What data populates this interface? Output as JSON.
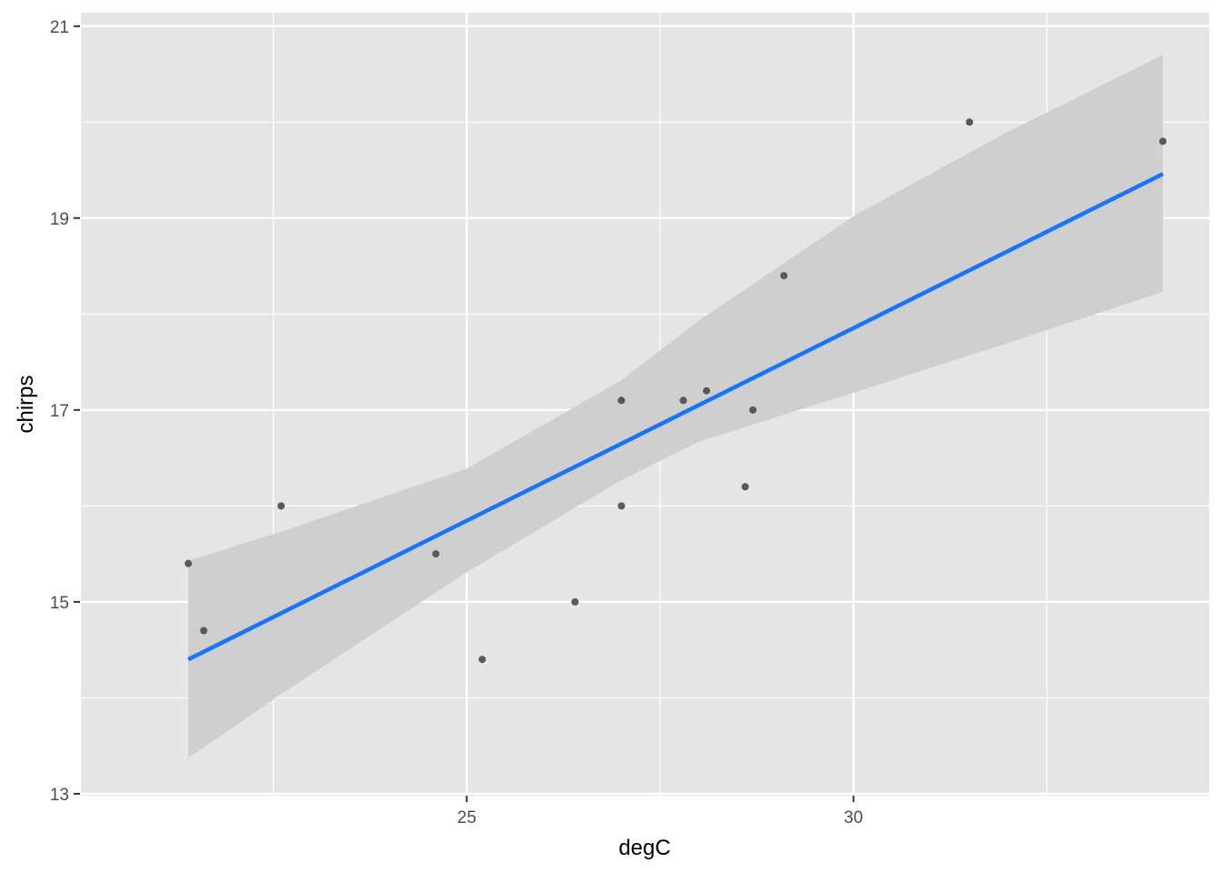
{
  "chart_data": {
    "type": "scatter",
    "title": "",
    "xlabel": "degC",
    "ylabel": "chirps",
    "xlim": [
      21.1,
      34.0
    ],
    "ylim": [
      13,
      21
    ],
    "x_ticks": [
      25,
      30
    ],
    "y_ticks": [
      13,
      15,
      17,
      19,
      21
    ],
    "grid": true,
    "legend": "none",
    "points": [
      {
        "x": 21.4,
        "y": 15.4
      },
      {
        "x": 21.6,
        "y": 14.7
      },
      {
        "x": 22.6,
        "y": 16.0
      },
      {
        "x": 24.6,
        "y": 15.5
      },
      {
        "x": 25.2,
        "y": 14.4
      },
      {
        "x": 26.4,
        "y": 15.0
      },
      {
        "x": 27.0,
        "y": 17.1
      },
      {
        "x": 27.0,
        "y": 16.0
      },
      {
        "x": 27.8,
        "y": 17.1
      },
      {
        "x": 28.1,
        "y": 17.2
      },
      {
        "x": 28.6,
        "y": 16.2
      },
      {
        "x": 28.7,
        "y": 17.0
      },
      {
        "x": 29.1,
        "y": 18.4
      },
      {
        "x": 31.5,
        "y": 20.0
      },
      {
        "x": 34.0,
        "y": 19.8
      }
    ],
    "fit": {
      "method": "linear",
      "x": [
        21.4,
        34.0
      ],
      "y": [
        14.4,
        19.46
      ]
    },
    "confidence_band": {
      "x": [
        21.4,
        22.6,
        25.0,
        27.0,
        28.0,
        30.0,
        32.0,
        34.0
      ],
      "upper": [
        15.43,
        15.73,
        16.39,
        17.31,
        17.93,
        19.02,
        19.9,
        20.7
      ],
      "lower": [
        13.37,
        14.04,
        15.31,
        16.27,
        16.67,
        17.18,
        17.7,
        18.23
      ]
    },
    "colors": {
      "panel": "#e5e5e5",
      "grid": "#ffffff",
      "point": "#595959",
      "fit_line": "#1874ff",
      "band": "#cfcfcf"
    }
  }
}
